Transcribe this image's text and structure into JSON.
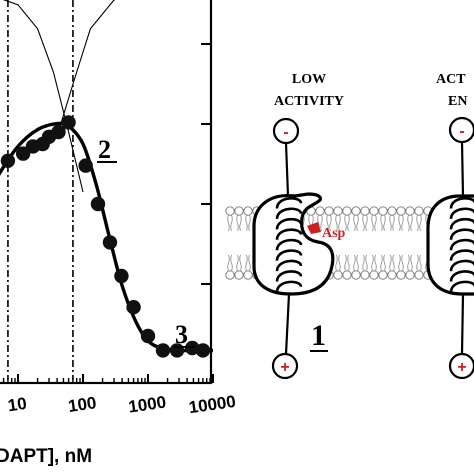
{
  "chart_data": {
    "type": "line",
    "xscale": "log",
    "xlim": [
      0.3,
      10000
    ],
    "x_tick_labels": [
      "10",
      "100",
      "1000",
      "10000"
    ],
    "x_ticks": [
      10,
      100,
      1000,
      10000
    ],
    "xlabel": "DAPT], nM",
    "ylabel": "",
    "dashed_lines_x": [
      7,
      70
    ],
    "points": [
      {
        "x": 0.5,
        "y": 0.31
      },
      {
        "x": 1.2,
        "y": 0.46
      },
      {
        "x": 2.2,
        "y": 0.6
      },
      {
        "x": 4.0,
        "y": 0.74
      },
      {
        "x": 7.0,
        "y": 0.83
      },
      {
        "x": 12,
        "y": 0.86
      },
      {
        "x": 17,
        "y": 0.89
      },
      {
        "x": 24,
        "y": 0.9
      },
      {
        "x": 30,
        "y": 0.93
      },
      {
        "x": 42,
        "y": 0.95
      },
      {
        "x": 60,
        "y": 0.99
      },
      {
        "x": 110,
        "y": 0.81
      },
      {
        "x": 170,
        "y": 0.65
      },
      {
        "x": 260,
        "y": 0.49
      },
      {
        "x": 390,
        "y": 0.35
      },
      {
        "x": 600,
        "y": 0.22
      },
      {
        "x": 1000,
        "y": 0.1
      },
      {
        "x": 1700,
        "y": 0.04
      },
      {
        "x": 2800,
        "y": 0.04
      },
      {
        "x": 4800,
        "y": 0.05
      },
      {
        "x": 7000,
        "y": 0.04
      }
    ],
    "fit_curve": [
      {
        "x": 0.3,
        "y": 0.22
      },
      {
        "x": 0.6,
        "y": 0.33
      },
      {
        "x": 1.2,
        "y": 0.47
      },
      {
        "x": 2.5,
        "y": 0.62
      },
      {
        "x": 5,
        "y": 0.77
      },
      {
        "x": 10,
        "y": 0.89
      },
      {
        "x": 20,
        "y": 0.96
      },
      {
        "x": 40,
        "y": 0.985
      },
      {
        "x": 60,
        "y": 0.975
      },
      {
        "x": 100,
        "y": 0.9
      },
      {
        "x": 160,
        "y": 0.73
      },
      {
        "x": 250,
        "y": 0.52
      },
      {
        "x": 400,
        "y": 0.31
      },
      {
        "x": 650,
        "y": 0.16
      },
      {
        "x": 1000,
        "y": 0.08
      },
      {
        "x": 1600,
        "y": 0.05
      },
      {
        "x": 3000,
        "y": 0.04
      },
      {
        "x": 10000,
        "y": 0.04
      }
    ],
    "thin_decreasing": [
      {
        "x": 0.3,
        "y": 1.55
      },
      {
        "x": 3,
        "y": 1.53
      },
      {
        "x": 10,
        "y": 1.48
      },
      {
        "x": 20,
        "y": 1.38
      },
      {
        "x": 35,
        "y": 1.2
      },
      {
        "x": 60,
        "y": 0.95
      },
      {
        "x": 100,
        "y": 0.7
      }
    ],
    "thin_increasing": [
      {
        "x": 45,
        "y": 0.98
      },
      {
        "x": 80,
        "y": 1.2
      },
      {
        "x": 130,
        "y": 1.38
      },
      {
        "x": 300,
        "y": 1.5
      },
      {
        "x": 1000,
        "y": 1.55
      },
      {
        "x": 10000,
        "y": 1.56
      }
    ],
    "annotations": [
      "2",
      "3"
    ]
  },
  "diagram": {
    "panel_left_title_line1": "LOW",
    "panel_left_title_line2": "ACTIVITY",
    "panel_right_title_line1": "ACT",
    "panel_right_title_line2": "EN",
    "asp_label": "Asp",
    "label_left": "1",
    "minus_symbol": "-",
    "plus_symbol": "+",
    "asp_color": "#cc1f1f"
  }
}
